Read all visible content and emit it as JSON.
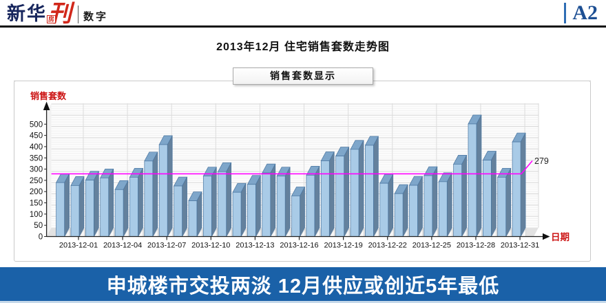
{
  "header": {
    "logo_main": "新华",
    "logo_kan": "刊",
    "logo_fang": "房",
    "logo_sub": "数字",
    "page_label": "A2"
  },
  "title": "2013年12月 住宅销售套数走势图",
  "tab_label": "销售套数显示",
  "banner": {
    "headline": "申城楼市交投两淡 12月供应或创近5年最低"
  },
  "colors": {
    "banner_bg": "#1a61a8",
    "page_label_blue": "#1d4f93",
    "logo_red": "#d1271a",
    "axis_label_red": "#cc1414",
    "bar_front": "#a9cbe7",
    "bar_side": "#64819d",
    "bar_top": "#7ea6ca",
    "bar_stroke": "#4a759f",
    "reference_line": "#ff00ff"
  },
  "chart_data": {
    "type": "bar",
    "title": "销售套数显示",
    "ylabel": "销售套数",
    "xlabel": "日期",
    "ylim": [
      0,
      500
    ],
    "ytick_step": 50,
    "grid": true,
    "categories": [
      "2013-11-30",
      "2013-12-01",
      "2013-12-02",
      "2013-12-03",
      "2013-12-04",
      "2013-12-05",
      "2013-12-06",
      "2013-12-07",
      "2013-12-08",
      "2013-12-09",
      "2013-12-10",
      "2013-12-11",
      "2013-12-12",
      "2013-12-13",
      "2013-12-14",
      "2013-12-15",
      "2013-12-16",
      "2013-12-17",
      "2013-12-18",
      "2013-12-19",
      "2013-12-20",
      "2013-12-21",
      "2013-12-22",
      "2013-12-23",
      "2013-12-24",
      "2013-12-25",
      "2013-12-26",
      "2013-12-27",
      "2013-12-28",
      "2013-12-29",
      "2013-12-30",
      "2013-12-31"
    ],
    "values": [
      240,
      227,
      251,
      261,
      209,
      264,
      336,
      409,
      225,
      159,
      269,
      289,
      197,
      232,
      283,
      269,
      181,
      273,
      337,
      358,
      388,
      406,
      237,
      191,
      228,
      271,
      244,
      322,
      501,
      340,
      264,
      421
    ],
    "xtick_labels": [
      "2013-12-01",
      "2013-12-04",
      "2013-12-07",
      "2013-12-10",
      "2013-12-13",
      "2013-12-16",
      "2013-12-19",
      "2013-12-22",
      "2013-12-25",
      "2013-12-28",
      "2013-12-31"
    ],
    "reference_line": {
      "value": 279,
      "label": "279",
      "color": "#ff00ff"
    }
  }
}
